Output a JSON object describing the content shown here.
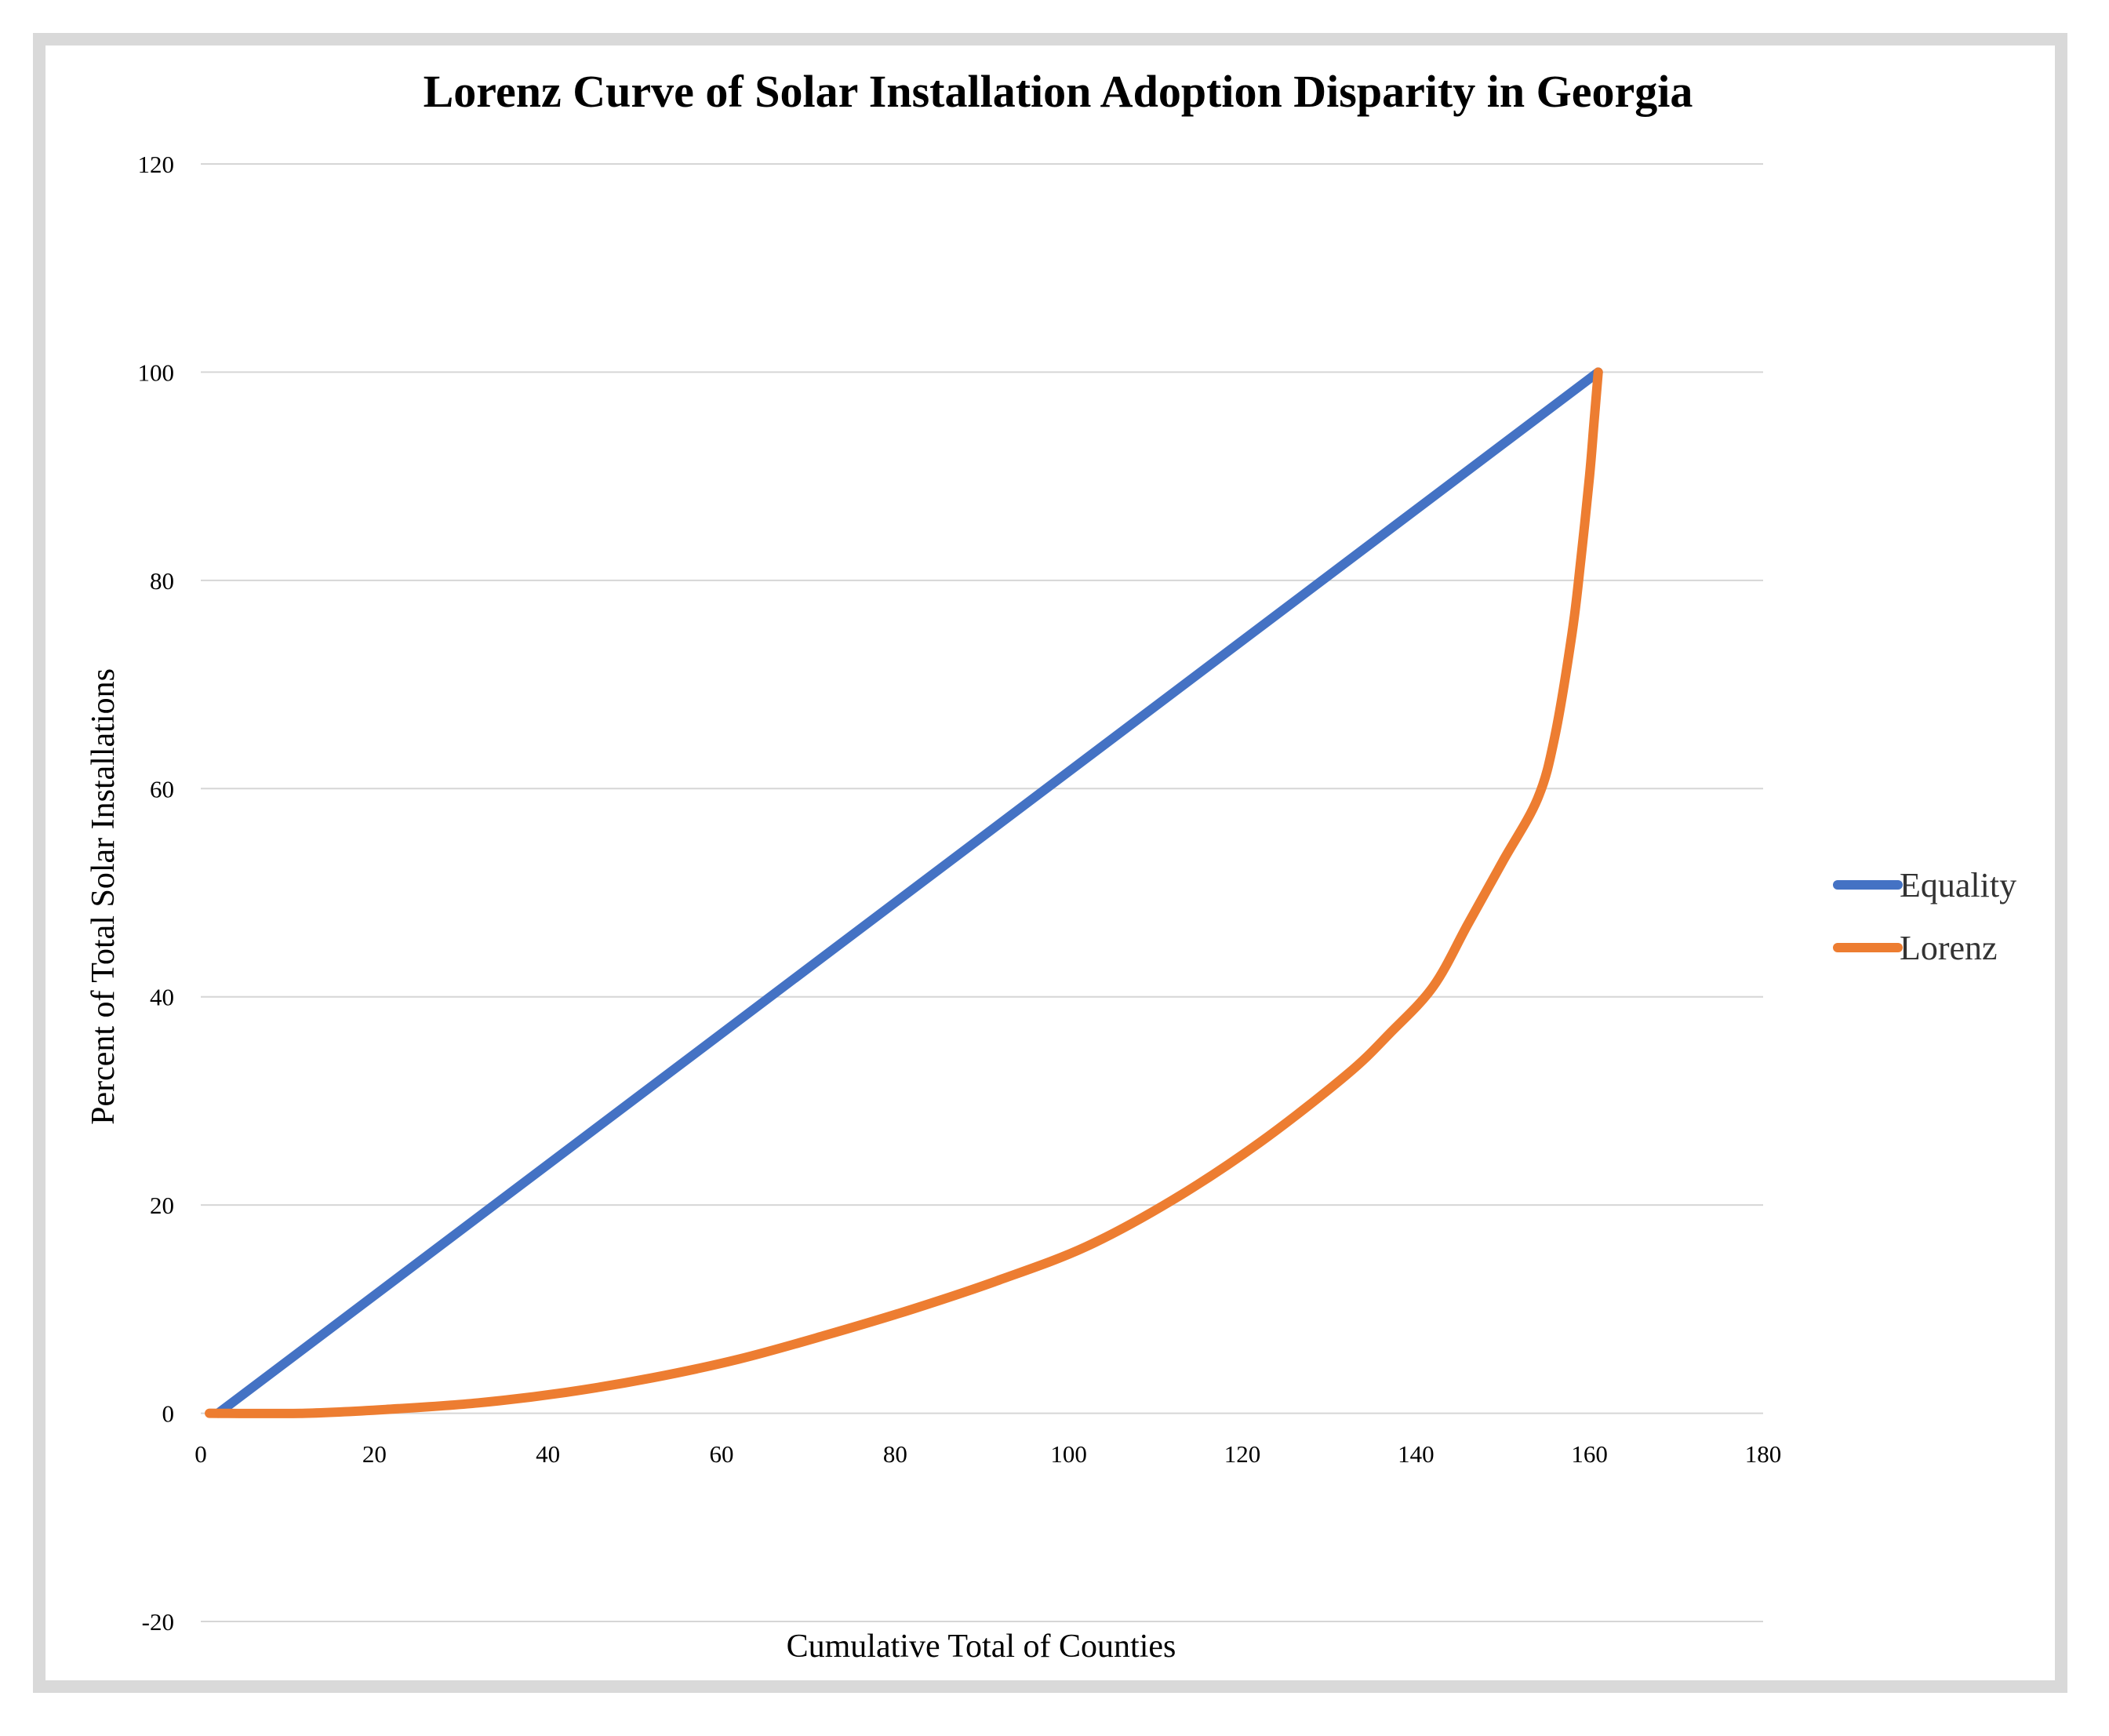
{
  "chart_data": {
    "type": "line",
    "title": "Lorenz Curve of Solar Installation Adoption Disparity in Georgia",
    "xlabel": "Cumulative Total of Counties",
    "ylabel": "Percent of Total Solar Installations",
    "xlim": [
      0,
      180
    ],
    "ylim": [
      -20,
      120
    ],
    "x_ticks": [
      "0",
      "20",
      "40",
      "60",
      "80",
      "100",
      "120",
      "140",
      "160",
      "180"
    ],
    "y_ticks": [
      "-20",
      "0",
      "20",
      "40",
      "60",
      "80",
      "100",
      "120"
    ],
    "grid": true,
    "legend_position": "right",
    "series": [
      {
        "name": "Equality",
        "color": "#4472c4",
        "x": [
          2,
          161
        ],
        "y": [
          0,
          100
        ]
      },
      {
        "name": "Lorenz",
        "color": "#ed7d31",
        "x": [
          1,
          12,
          22,
          32,
          42,
          52,
          62,
          72,
          82,
          92,
          102,
          112,
          122,
          132,
          137,
          142,
          146,
          150,
          154,
          156,
          158,
          159,
          160,
          160.5,
          161
        ],
        "y": [
          0,
          0,
          0.4,
          1,
          2,
          3.4,
          5.2,
          7.5,
          10,
          12.8,
          16,
          20.5,
          26,
          32.5,
          36.5,
          41,
          47,
          53,
          59,
          65,
          75,
          82,
          90,
          95,
          100
        ]
      }
    ]
  }
}
